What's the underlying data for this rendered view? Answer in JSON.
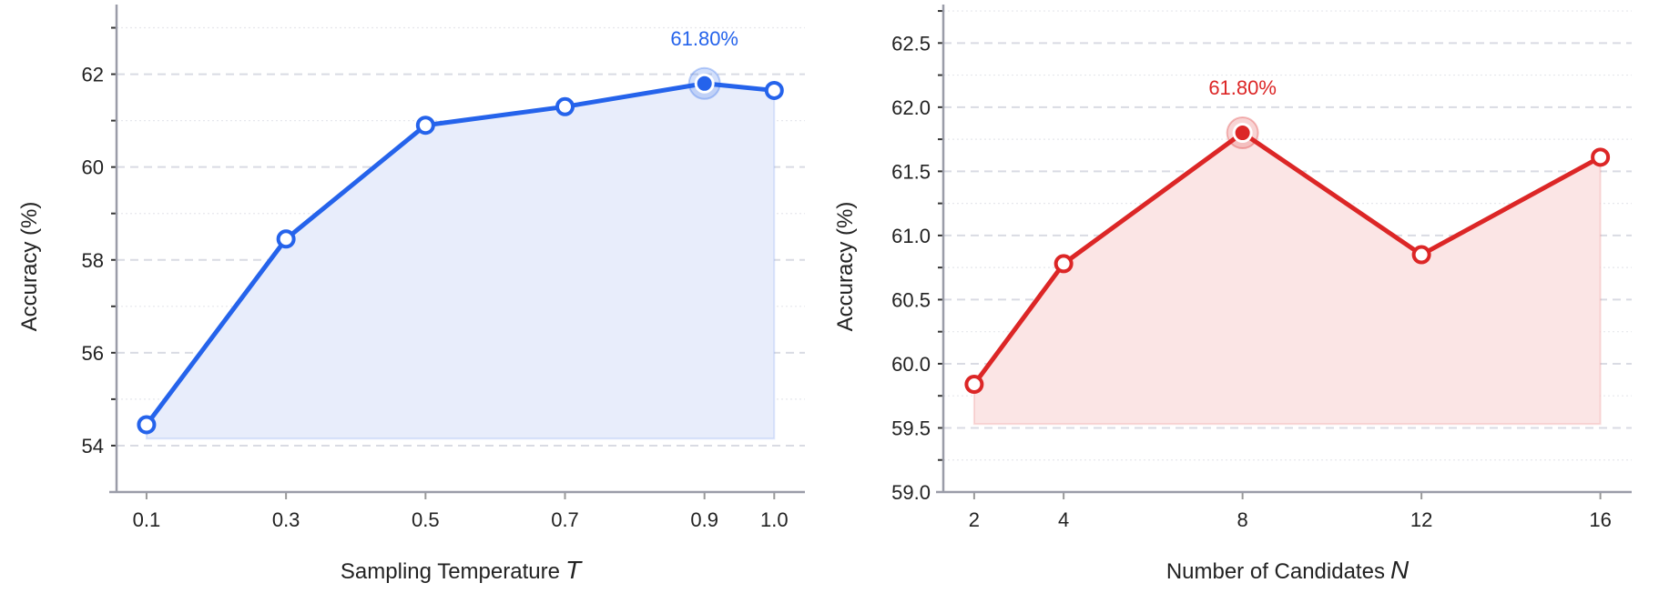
{
  "chart_data": [
    {
      "type": "line",
      "xlabel": "Sampling Temperature",
      "xlabel_var": "T",
      "ylabel": "Accuracy (%)",
      "x": [
        0.1,
        0.3,
        0.5,
        0.7,
        0.9,
        1.0
      ],
      "x_tick_labels": [
        "0.1",
        "0.3",
        "0.5",
        "0.7",
        "0.9",
        "1.0"
      ],
      "values": [
        54.45,
        58.45,
        60.9,
        61.3,
        61.8,
        61.65
      ],
      "yticks": [
        54,
        56,
        58,
        60,
        62
      ],
      "y_tick_labels": [
        "54",
        "56",
        "58",
        "60",
        "62"
      ],
      "ylim": [
        53,
        63.5
      ],
      "xlim": [
        0.057,
        1.044
      ],
      "fill_base": 54.15,
      "highlight_index": 4,
      "annotation": "61.80%",
      "color": "#2563eb",
      "fill_color": "#e8edfb",
      "grid": true
    },
    {
      "type": "line",
      "xlabel": "Number of Candidates",
      "xlabel_var": "N",
      "ylabel": "Accuracy (%)",
      "x": [
        2,
        4,
        8,
        12,
        16
      ],
      "x_tick_labels": [
        "2",
        "4",
        "8",
        "12",
        "16"
      ],
      "values": [
        59.84,
        60.78,
        61.8,
        60.85,
        61.61
      ],
      "yticks": [
        59.0,
        59.5,
        60.0,
        60.5,
        61.0,
        61.5,
        62.0,
        62.5
      ],
      "y_tick_labels": [
        "59.0",
        "59.5",
        "60.0",
        "60.5",
        "61.0",
        "61.5",
        "62.0",
        "62.5"
      ],
      "ylim": [
        59.0,
        62.8
      ],
      "xlim": [
        1.31,
        16.7
      ],
      "fill_base": 59.53,
      "highlight_index": 2,
      "annotation": "61.80%",
      "color": "#dc2626",
      "fill_color": "#fbe5e5",
      "grid": true
    }
  ]
}
